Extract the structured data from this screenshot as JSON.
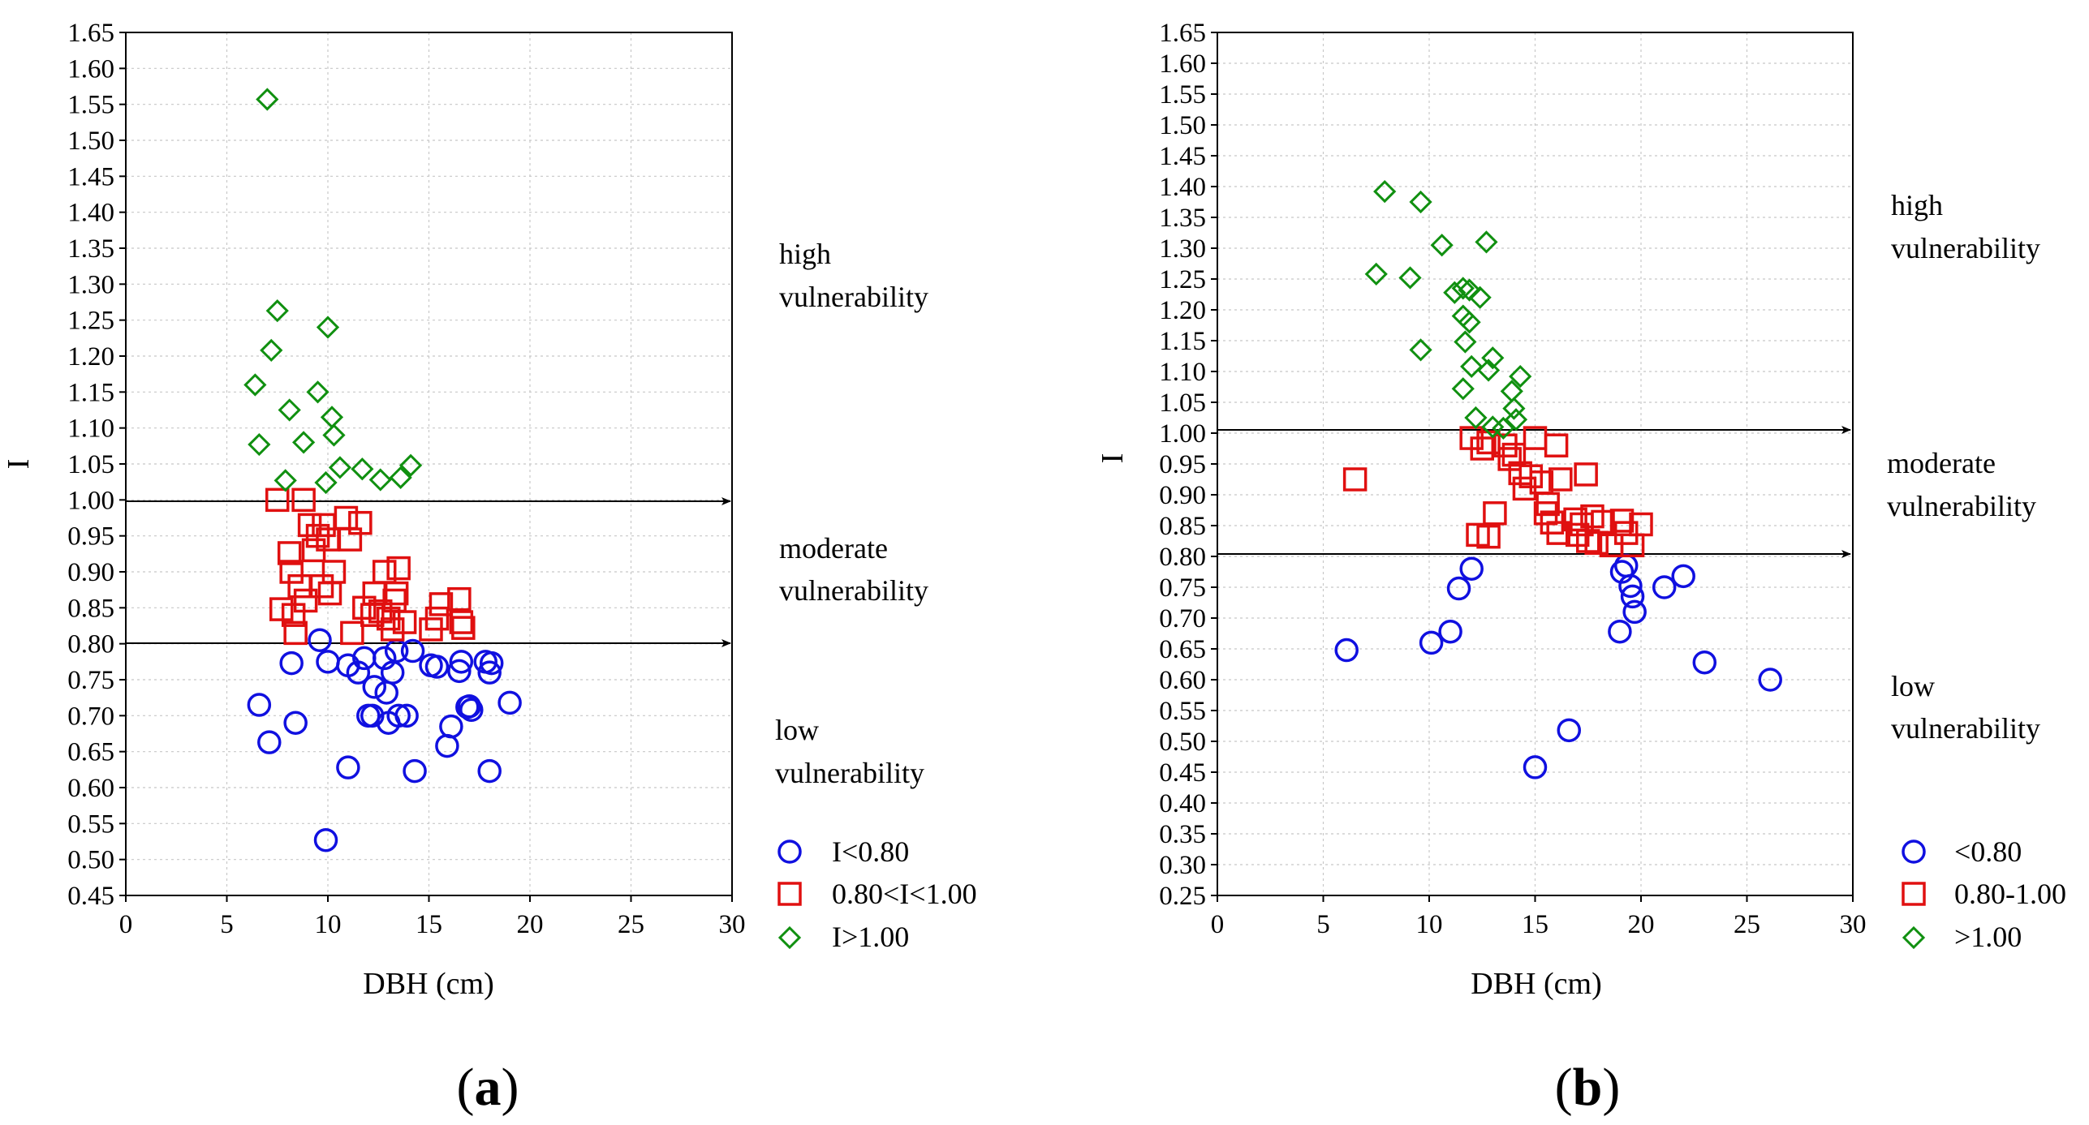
{
  "chart_data": [
    {
      "type": "scatter",
      "panel_label": "a",
      "xlabel": "DBH (cm)",
      "ylabel": "I",
      "xlim": [
        0,
        30
      ],
      "ylim": [
        0.45,
        1.65
      ],
      "x_ticks": [
        "0",
        "5",
        "10",
        "15",
        "20",
        "25",
        "30"
      ],
      "y_ticks": [
        "0.45",
        "0.50",
        "0.55",
        "0.60",
        "0.65",
        "0.70",
        "0.75",
        "0.80",
        "0.85",
        "0.90",
        "0.95",
        "1.00",
        "1.05",
        "1.10",
        "1.15",
        "1.20",
        "1.25",
        "1.30",
        "1.35",
        "1.40",
        "1.45",
        "1.50",
        "1.55",
        "1.60",
        "1.65"
      ],
      "grid": true,
      "thresholds": [
        1.0,
        0.8
      ],
      "zones": [
        {
          "line1": "high",
          "line2": "vulnerability"
        },
        {
          "line1": "moderate",
          "line2": "vulnerability"
        },
        {
          "line1": "low",
          "line2": "vulnerability"
        }
      ],
      "series": [
        {
          "name": "I<0.80",
          "marker": "circle",
          "color": "#1010e0",
          "points": [
            [
              9.6,
              0.805
            ],
            [
              6.6,
              0.715
            ],
            [
              7.1,
              0.663
            ],
            [
              8.2,
              0.773
            ],
            [
              8.4,
              0.69
            ],
            [
              9.9,
              0.527
            ],
            [
              10.0,
              0.775
            ],
            [
              11.0,
              0.77
            ],
            [
              11.0,
              0.628
            ],
            [
              11.5,
              0.76
            ],
            [
              11.8,
              0.78
            ],
            [
              12.0,
              0.7
            ],
            [
              12.2,
              0.7
            ],
            [
              12.3,
              0.74
            ],
            [
              12.8,
              0.78
            ],
            [
              12.9,
              0.732
            ],
            [
              13.0,
              0.69
            ],
            [
              13.2,
              0.76
            ],
            [
              13.4,
              0.79
            ],
            [
              13.5,
              0.7
            ],
            [
              13.9,
              0.7
            ],
            [
              14.2,
              0.79
            ],
            [
              14.3,
              0.623
            ],
            [
              15.1,
              0.77
            ],
            [
              15.4,
              0.768
            ],
            [
              15.9,
              0.658
            ],
            [
              16.1,
              0.685
            ],
            [
              16.5,
              0.762
            ],
            [
              16.6,
              0.775
            ],
            [
              16.9,
              0.712
            ],
            [
              17.0,
              0.713
            ],
            [
              17.1,
              0.708
            ],
            [
              17.8,
              0.775
            ],
            [
              18.0,
              0.76
            ],
            [
              18.0,
              0.623
            ],
            [
              18.1,
              0.773
            ],
            [
              19.0,
              0.718
            ]
          ]
        },
        {
          "name": "0.80<I<1.00",
          "marker": "square",
          "color": "#e01010",
          "points": [
            [
              7.5,
              1.0
            ],
            [
              8.8,
              1.0
            ],
            [
              7.7,
              0.848
            ],
            [
              8.1,
              0.926
            ],
            [
              8.2,
              0.9
            ],
            [
              8.3,
              0.84
            ],
            [
              8.4,
              0.815
            ],
            [
              8.6,
              0.88
            ],
            [
              8.9,
              0.86
            ],
            [
              9.1,
              0.965
            ],
            [
              9.3,
              0.93
            ],
            [
              9.5,
              0.95
            ],
            [
              9.7,
              0.88
            ],
            [
              9.8,
              0.965
            ],
            [
              10.0,
              0.945
            ],
            [
              10.1,
              0.87
            ],
            [
              10.3,
              0.9
            ],
            [
              10.9,
              0.975
            ],
            [
              11.1,
              0.945
            ],
            [
              11.2,
              0.815
            ],
            [
              11.6,
              0.968
            ],
            [
              11.8,
              0.85
            ],
            [
              12.2,
              0.84
            ],
            [
              12.3,
              0.87
            ],
            [
              12.6,
              0.845
            ],
            [
              12.8,
              0.9
            ],
            [
              13.0,
              0.835
            ],
            [
              13.2,
              0.82
            ],
            [
              13.3,
              0.86
            ],
            [
              13.4,
              0.87
            ],
            [
              13.5,
              0.905
            ],
            [
              13.8,
              0.83
            ],
            [
              15.1,
              0.82
            ],
            [
              15.4,
              0.835
            ],
            [
              15.6,
              0.855
            ],
            [
              16.5,
              0.862
            ],
            [
              16.6,
              0.83
            ],
            [
              16.7,
              0.822
            ]
          ]
        },
        {
          "name": "I>1.00",
          "marker": "diamond",
          "color": "#109010",
          "points": [
            [
              7.0,
              1.557
            ],
            [
              7.5,
              1.263
            ],
            [
              7.2,
              1.208
            ],
            [
              6.4,
              1.16
            ],
            [
              9.5,
              1.15
            ],
            [
              8.1,
              1.125
            ],
            [
              10.0,
              1.24
            ],
            [
              10.2,
              1.115
            ],
            [
              10.3,
              1.09
            ],
            [
              6.6,
              1.077
            ],
            [
              8.8,
              1.08
            ],
            [
              7.9,
              1.027
            ],
            [
              9.9,
              1.024
            ],
            [
              10.6,
              1.045
            ],
            [
              11.7,
              1.043
            ],
            [
              12.6,
              1.028
            ],
            [
              13.6,
              1.031
            ],
            [
              14.1,
              1.048
            ]
          ]
        }
      ]
    },
    {
      "type": "scatter",
      "panel_label": "b",
      "xlabel": "DBH (cm)",
      "ylabel": "I",
      "xlim": [
        0,
        30
      ],
      "ylim": [
        0.25,
        1.65
      ],
      "x_ticks": [
        "0",
        "5",
        "10",
        "15",
        "20",
        "25",
        "30"
      ],
      "y_ticks": [
        "0.25",
        "0.30",
        "0.35",
        "0.40",
        "0.45",
        "0.50",
        "0.55",
        "0.60",
        "0.65",
        "0.70",
        "0.75",
        "0.80",
        "0.85",
        "0.90",
        "0.95",
        "1.00",
        "1.05",
        "1.10",
        "1.15",
        "1.20",
        "1.25",
        "1.30",
        "1.35",
        "1.40",
        "1.45",
        "1.50",
        "1.55",
        "1.60",
        "1.65"
      ],
      "grid": true,
      "thresholds": [
        1.0,
        0.8
      ],
      "zones": [
        {
          "line1": "high",
          "line2": "vulnerability"
        },
        {
          "line1": "moderate",
          "line2": "vulnerability"
        },
        {
          "line1": "low",
          "line2": "vulnerability"
        }
      ],
      "series": [
        {
          "name": "<0.80",
          "marker": "circle",
          "color": "#1010e0",
          "points": [
            [
              6.1,
              0.648
            ],
            [
              10.1,
              0.66
            ],
            [
              11.0,
              0.678
            ],
            [
              11.4,
              0.748
            ],
            [
              12.0,
              0.78
            ],
            [
              15.0,
              0.458
            ],
            [
              16.6,
              0.518
            ],
            [
              19.0,
              0.678
            ],
            [
              19.1,
              0.775
            ],
            [
              19.3,
              0.785
            ],
            [
              19.5,
              0.752
            ],
            [
              19.6,
              0.735
            ],
            [
              19.7,
              0.71
            ],
            [
              21.1,
              0.75
            ],
            [
              22.0,
              0.768
            ],
            [
              23.0,
              0.628
            ],
            [
              26.1,
              0.6
            ]
          ]
        },
        {
          "name": "0.80-1.00",
          "marker": "square",
          "color": "#e01010",
          "points": [
            [
              6.5,
              0.925
            ],
            [
              12.0,
              0.992
            ],
            [
              12.3,
              0.835
            ],
            [
              12.5,
              0.975
            ],
            [
              12.8,
              0.985
            ],
            [
              12.8,
              0.832
            ],
            [
              13.1,
              0.87
            ],
            [
              13.6,
              0.98
            ],
            [
              13.8,
              0.958
            ],
            [
              14.0,
              0.965
            ],
            [
              14.3,
              0.935
            ],
            [
              14.5,
              0.91
            ],
            [
              14.8,
              0.93
            ],
            [
              15.0,
              0.992
            ],
            [
              15.3,
              0.92
            ],
            [
              15.5,
              0.87
            ],
            [
              15.6,
              0.885
            ],
            [
              15.8,
              0.855
            ],
            [
              16.0,
              0.98
            ],
            [
              16.1,
              0.838
            ],
            [
              16.2,
              0.925
            ],
            [
              16.9,
              0.86
            ],
            [
              17.0,
              0.835
            ],
            [
              17.2,
              0.852
            ],
            [
              17.4,
              0.933
            ],
            [
              17.5,
              0.825
            ],
            [
              17.7,
              0.865
            ],
            [
              17.9,
              0.822
            ],
            [
              18.2,
              0.856
            ],
            [
              18.6,
              0.818
            ],
            [
              19.1,
              0.858
            ],
            [
              19.3,
              0.838
            ],
            [
              19.6,
              0.818
            ],
            [
              20.0,
              0.852
            ]
          ]
        },
        {
          "name": ">1.00",
          "marker": "diamond",
          "color": "#109010",
          "points": [
            [
              7.9,
              1.392
            ],
            [
              9.6,
              1.375
            ],
            [
              7.5,
              1.258
            ],
            [
              9.1,
              1.252
            ],
            [
              10.6,
              1.305
            ],
            [
              12.7,
              1.31
            ],
            [
              11.2,
              1.228
            ],
            [
              11.6,
              1.235
            ],
            [
              11.9,
              1.232
            ],
            [
              12.4,
              1.22
            ],
            [
              11.6,
              1.19
            ],
            [
              11.9,
              1.18
            ],
            [
              11.7,
              1.148
            ],
            [
              9.6,
              1.135
            ],
            [
              12.0,
              1.108
            ],
            [
              12.8,
              1.102
            ],
            [
              13.0,
              1.122
            ],
            [
              11.6,
              1.072
            ],
            [
              13.9,
              1.068
            ],
            [
              14.3,
              1.092
            ],
            [
              12.2,
              1.025
            ],
            [
              13.0,
              1.01
            ],
            [
              13.5,
              1.008
            ],
            [
              14.0,
              1.04
            ],
            [
              14.1,
              1.022
            ]
          ]
        }
      ]
    }
  ]
}
